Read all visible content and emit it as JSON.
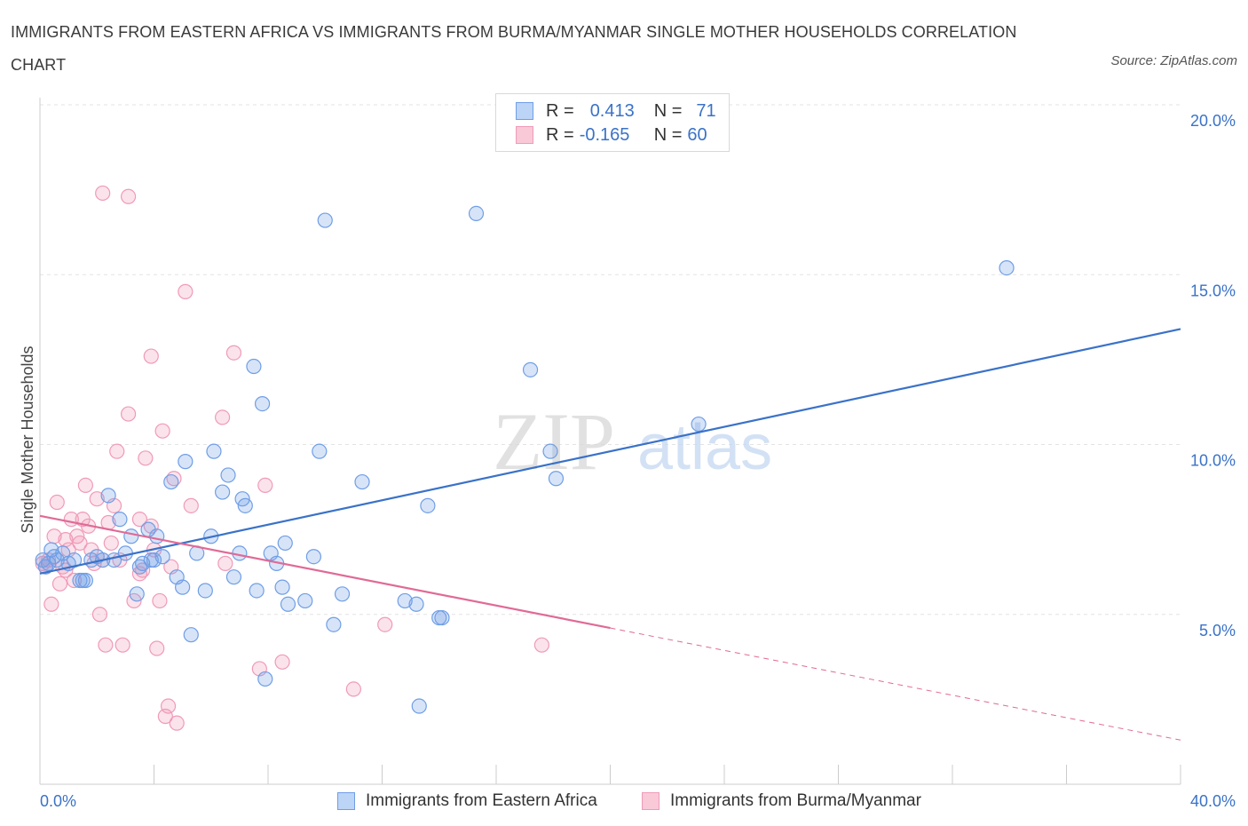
{
  "header": {
    "title": "IMMIGRANTS FROM EASTERN AFRICA VS IMMIGRANTS FROM BURMA/MYANMAR SINGLE MOTHER HOUSEHOLDS CORRELATION CHART",
    "source": "Source: ZipAtlas.com"
  },
  "legend": {
    "r_label": "R =",
    "n_label": "N =",
    "series": [
      {
        "r": "0.413",
        "n": "71"
      },
      {
        "r": "-0.165",
        "n": "60"
      }
    ]
  },
  "watermark": {
    "zip": "ZIP",
    "atlas": "atlas"
  },
  "chart_data": {
    "type": "scatter",
    "title": "IMMIGRANTS FROM EASTERN AFRICA VS IMMIGRANTS FROM BURMA/MYANMAR SINGLE MOTHER HOUSEHOLDS CORRELATION CHART",
    "xlabel": "",
    "ylabel": "Single Mother Households",
    "xlim": [
      0,
      40
    ],
    "ylim": [
      0,
      20
    ],
    "x_tick_labels": [
      "0.0%",
      "40.0%"
    ],
    "y_ticks": [
      5,
      10,
      15,
      20
    ],
    "y_tick_labels": [
      "5.0%",
      "10.0%",
      "15.0%",
      "20.0%"
    ],
    "grid": true,
    "legend_position": "top-center",
    "colors": {
      "blue": "#6f9ee6",
      "blue_line": "#3a72c8",
      "pink": "#f09ab8",
      "pink_line": "#e06a96"
    },
    "series": [
      {
        "name": "Immigrants from Eastern Africa",
        "color": "#6f9ee6",
        "trend": {
          "x": [
            0,
            40
          ],
          "y": [
            6.2,
            13.4
          ]
        },
        "points": [
          [
            0.1,
            6.6
          ],
          [
            0.3,
            6.5
          ],
          [
            0.4,
            6.9
          ],
          [
            0.5,
            6.7
          ],
          [
            0.6,
            6.6
          ],
          [
            0.8,
            6.8
          ],
          [
            1.0,
            6.5
          ],
          [
            1.2,
            6.6
          ],
          [
            1.4,
            6.0
          ],
          [
            1.6,
            6.0
          ],
          [
            1.8,
            6.6
          ],
          [
            2.0,
            6.7
          ],
          [
            2.4,
            8.5
          ],
          [
            2.6,
            6.6
          ],
          [
            2.8,
            7.8
          ],
          [
            3.0,
            6.8
          ],
          [
            3.2,
            7.3
          ],
          [
            3.4,
            5.6
          ],
          [
            3.5,
            6.4
          ],
          [
            3.6,
            6.5
          ],
          [
            3.8,
            7.5
          ],
          [
            4.0,
            6.6
          ],
          [
            4.1,
            7.3
          ],
          [
            4.3,
            6.7
          ],
          [
            4.6,
            8.9
          ],
          [
            4.8,
            6.1
          ],
          [
            5.0,
            5.8
          ],
          [
            5.1,
            9.5
          ],
          [
            5.3,
            4.4
          ],
          [
            5.5,
            6.8
          ],
          [
            5.8,
            5.7
          ],
          [
            6.0,
            7.3
          ],
          [
            6.1,
            9.8
          ],
          [
            6.4,
            8.6
          ],
          [
            6.6,
            9.1
          ],
          [
            6.8,
            6.1
          ],
          [
            7.0,
            6.8
          ],
          [
            7.1,
            8.4
          ],
          [
            7.2,
            8.2
          ],
          [
            7.5,
            12.3
          ],
          [
            7.6,
            5.7
          ],
          [
            7.8,
            11.2
          ],
          [
            7.9,
            3.1
          ],
          [
            8.1,
            6.8
          ],
          [
            8.3,
            6.5
          ],
          [
            8.5,
            5.8
          ],
          [
            8.6,
            7.1
          ],
          [
            8.7,
            5.3
          ],
          [
            9.3,
            5.4
          ],
          [
            9.6,
            6.7
          ],
          [
            9.8,
            9.8
          ],
          [
            10.0,
            16.6
          ],
          [
            10.3,
            4.7
          ],
          [
            10.6,
            5.6
          ],
          [
            11.3,
            8.9
          ],
          [
            12.8,
            5.4
          ],
          [
            13.2,
            5.3
          ],
          [
            13.6,
            8.2
          ],
          [
            14.0,
            4.9
          ],
          [
            14.1,
            4.9
          ],
          [
            15.3,
            16.8
          ],
          [
            17.2,
            12.2
          ],
          [
            17.9,
            9.8
          ],
          [
            18.1,
            9.0
          ],
          [
            23.1,
            10.6
          ],
          [
            33.9,
            15.2
          ],
          [
            0.2,
            6.4
          ],
          [
            1.5,
            6.0
          ],
          [
            13.3,
            2.3
          ],
          [
            3.9,
            6.6
          ],
          [
            2.2,
            6.6
          ]
        ]
      },
      {
        "name": "Immigrants from Burma/Myanmar",
        "color": "#f09ab8",
        "trend": {
          "x": [
            0,
            20
          ],
          "y": [
            7.9,
            4.6
          ]
        },
        "trend_dashed": {
          "x": [
            20,
            40
          ],
          "y": [
            4.6,
            1.3
          ]
        },
        "points": [
          [
            0.1,
            6.5
          ],
          [
            0.2,
            6.4
          ],
          [
            0.3,
            6.6
          ],
          [
            0.4,
            5.3
          ],
          [
            0.5,
            7.3
          ],
          [
            0.6,
            8.3
          ],
          [
            0.7,
            5.9
          ],
          [
            0.8,
            6.4
          ],
          [
            0.9,
            7.2
          ],
          [
            1.0,
            6.9
          ],
          [
            1.1,
            7.8
          ],
          [
            1.3,
            7.3
          ],
          [
            1.4,
            7.1
          ],
          [
            1.5,
            7.8
          ],
          [
            1.6,
            8.8
          ],
          [
            1.7,
            7.6
          ],
          [
            1.8,
            6.9
          ],
          [
            1.9,
            6.5
          ],
          [
            2.0,
            8.4
          ],
          [
            2.1,
            5.0
          ],
          [
            2.2,
            6.6
          ],
          [
            2.3,
            4.1
          ],
          [
            2.4,
            7.7
          ],
          [
            2.5,
            7.1
          ],
          [
            2.6,
            8.2
          ],
          [
            2.7,
            9.8
          ],
          [
            2.8,
            6.6
          ],
          [
            2.9,
            4.1
          ],
          [
            3.1,
            10.9
          ],
          [
            3.3,
            5.4
          ],
          [
            3.5,
            7.8
          ],
          [
            3.6,
            6.3
          ],
          [
            3.7,
            9.6
          ],
          [
            3.9,
            7.6
          ],
          [
            4.0,
            6.9
          ],
          [
            4.1,
            4.0
          ],
          [
            4.2,
            5.4
          ],
          [
            4.3,
            10.4
          ],
          [
            4.4,
            2.0
          ],
          [
            4.5,
            2.3
          ],
          [
            4.6,
            6.4
          ],
          [
            4.7,
            9.0
          ],
          [
            4.8,
            1.8
          ],
          [
            5.1,
            14.5
          ],
          [
            5.3,
            8.2
          ],
          [
            6.4,
            10.8
          ],
          [
            6.8,
            12.7
          ],
          [
            7.7,
            3.4
          ],
          [
            7.9,
            8.8
          ],
          [
            8.5,
            3.6
          ],
          [
            11.0,
            2.8
          ],
          [
            12.1,
            4.7
          ],
          [
            17.6,
            4.1
          ],
          [
            2.2,
            17.4
          ],
          [
            3.1,
            17.3
          ],
          [
            3.9,
            12.6
          ],
          [
            1.2,
            6.0
          ],
          [
            0.9,
            6.3
          ],
          [
            3.5,
            6.2
          ],
          [
            6.5,
            6.5
          ]
        ]
      }
    ]
  },
  "bottom_legend": [
    {
      "label": "Immigrants from Eastern Africa"
    },
    {
      "label": "Immigrants from Burma/Myanmar"
    }
  ]
}
